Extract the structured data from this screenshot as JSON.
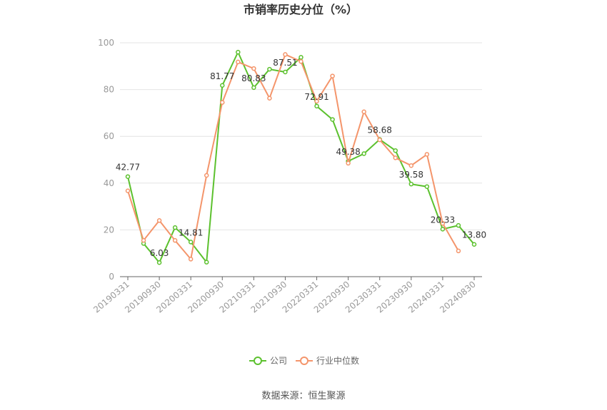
{
  "chart_data": {
    "type": "line",
    "title": "市销率历史分位（%）",
    "source": "数据来源：恒生聚源",
    "ylim": [
      0,
      100
    ],
    "yticks": [
      0,
      20,
      40,
      60,
      80,
      100
    ],
    "x": [
      "20190331",
      "20190630",
      "20190930",
      "20191231",
      "20200331",
      "20200630",
      "20200930",
      "20201231",
      "20210331",
      "20210630",
      "20210930",
      "20211231",
      "20220331",
      "20220630",
      "20220930",
      "20221231",
      "20230331",
      "20230630",
      "20230930",
      "20231231",
      "20240331",
      "20240630",
      "20240830"
    ],
    "xtick_labels": [
      "20190331",
      "20190930",
      "20200331",
      "20200930",
      "20210331",
      "20210930",
      "20220331",
      "20220930",
      "20230331",
      "20230930",
      "20240331",
      "20240830"
    ],
    "grid": true,
    "legend_position": "bottom-center",
    "series": [
      {
        "name": "公司",
        "color": "#5cc12e",
        "values": [
          42.77,
          14.2,
          6.03,
          21.0,
          14.81,
          6.2,
          81.77,
          96.0,
          80.83,
          88.7,
          87.51,
          93.8,
          72.91,
          67.2,
          49.38,
          52.6,
          58.68,
          53.9,
          39.58,
          38.5,
          20.33,
          21.9,
          13.8
        ],
        "labels": {
          "0": "42.77",
          "2": "6.03",
          "4": "14.81",
          "6": "81.77",
          "8": "80.83",
          "10": "87.51",
          "12": "72.91",
          "14": "49.38",
          "16": "58.68",
          "18": "39.58",
          "20": "20.33",
          "22": "13.80"
        }
      },
      {
        "name": "行业中位数",
        "color": "#f4956b",
        "values": [
          36.7,
          15.5,
          24.0,
          15.5,
          7.5,
          43.3,
          74.5,
          91.8,
          89.0,
          76.3,
          95.0,
          92.0,
          75.0,
          85.8,
          48.5,
          70.5,
          58.5,
          50.8,
          47.5,
          52.3,
          22.8,
          11.0,
          null
        ]
      }
    ]
  }
}
